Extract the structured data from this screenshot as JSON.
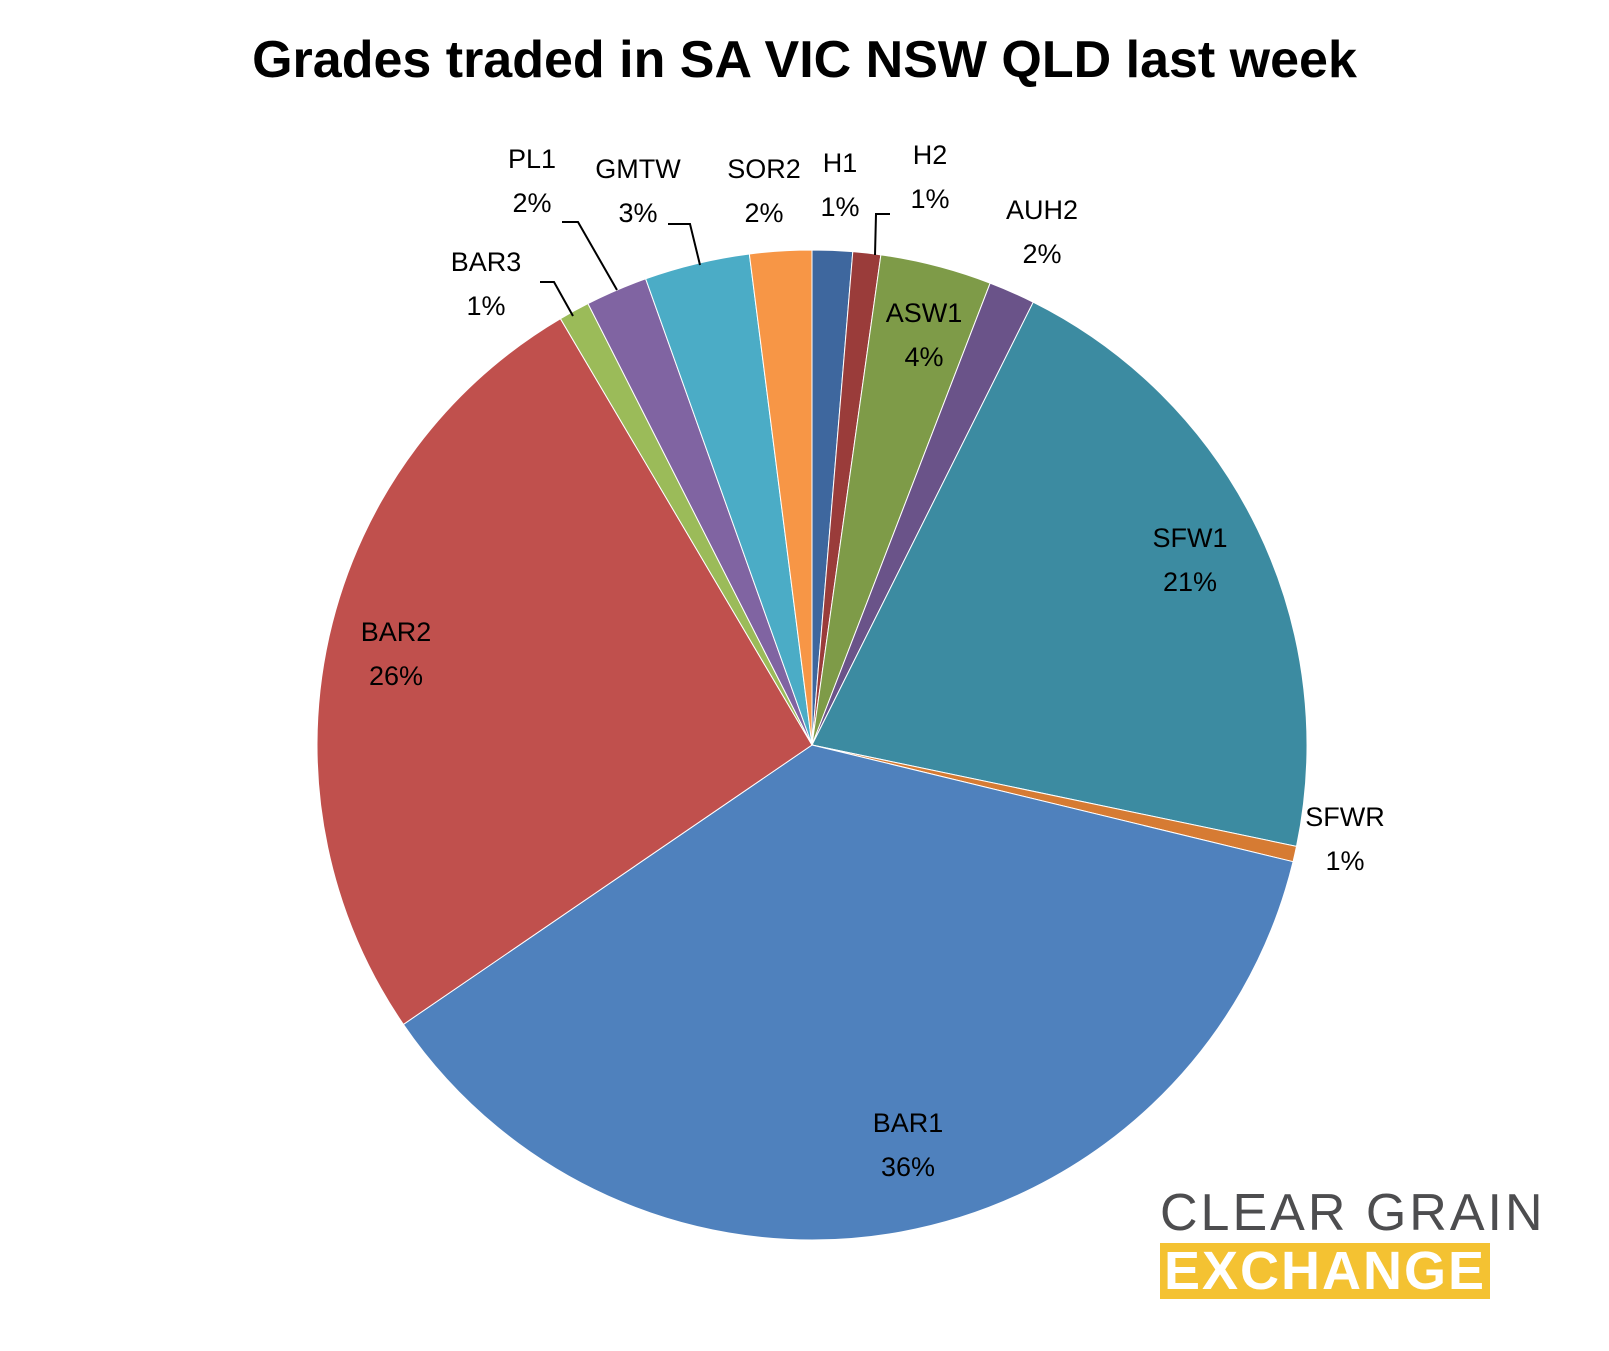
{
  "chart_data": {
    "type": "pie",
    "title": "Grades traded in SA VIC NSW QLD last week",
    "slices": [
      {
        "label": "H1",
        "percent_label": "1%",
        "value": 1.3,
        "color": "#3e679e"
      },
      {
        "label": "H2",
        "percent_label": "1%",
        "value": 0.9,
        "color": "#9a3c3a"
      },
      {
        "label": "ASW1",
        "percent_label": "4%",
        "value": 3.6,
        "color": "#7e9b48"
      },
      {
        "label": "AUH2",
        "percent_label": "2%",
        "value": 1.5,
        "color": "#6a5389"
      },
      {
        "label": "SFW1",
        "percent_label": "21%",
        "value": 20.7,
        "color": "#3c8ba1"
      },
      {
        "label": "SFWR",
        "percent_label": "1%",
        "value": 0.5,
        "color": "#d67b33"
      },
      {
        "label": "BAR1",
        "percent_label": "36%",
        "value": 36.3,
        "color": "#4f81bd"
      },
      {
        "label": "BAR2",
        "percent_label": "26%",
        "value": 25.8,
        "color": "#c0504d"
      },
      {
        "label": "BAR3",
        "percent_label": "1%",
        "value": 1.0,
        "color": "#9bbb59"
      },
      {
        "label": "PL1",
        "percent_label": "2%",
        "value": 2.0,
        "color": "#8064a2"
      },
      {
        "label": "GMTW",
        "percent_label": "3%",
        "value": 3.4,
        "color": "#4bacc6"
      },
      {
        "label": "SOR2",
        "percent_label": "2%",
        "value": 2.0,
        "color": "#f79646"
      }
    ]
  },
  "logo": {
    "line1": "CLEAR GRAIN",
    "line2": "EXCHANGE",
    "colors": {
      "text": "#4d4d4f",
      "band": "#f4c232"
    }
  }
}
